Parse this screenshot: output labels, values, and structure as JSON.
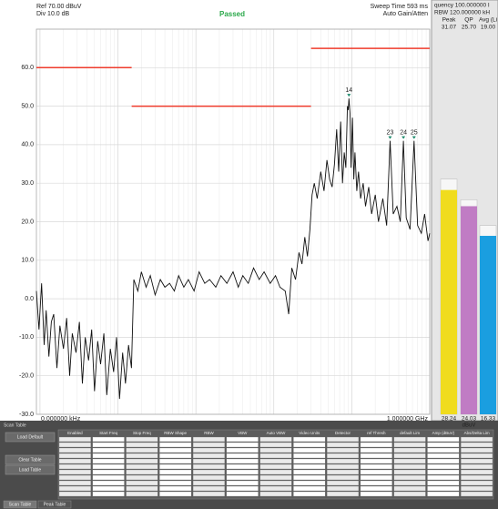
{
  "header": {
    "ref": "Ref 70.00 dBuV",
    "div": "Div 10.0 dB",
    "status": "Passed",
    "sweep": "Sweep Time 593 ms",
    "gain": "Auto Gain/Atten"
  },
  "chart_data": {
    "type": "line",
    "x_start_label": "0.000000 kHz",
    "x_end_label": "1.000000 GHz",
    "log_x": true,
    "grid": true,
    "xlim": [
      0.009,
      1000
    ],
    "ylim": [
      -30,
      70
    ],
    "yticks": [
      {
        "value": -30,
        "label": "-30.0"
      },
      {
        "value": -20,
        "label": "-20.0"
      },
      {
        "value": -10,
        "label": "-10.0"
      },
      {
        "value": 0,
        "label": "0.0"
      },
      {
        "value": 10,
        "label": "10.0"
      },
      {
        "value": 20,
        "label": "20.0"
      },
      {
        "value": 30,
        "label": "30.0"
      },
      {
        "value": 40,
        "label": "40.0"
      },
      {
        "value": 50,
        "label": "50.0"
      },
      {
        "value": 60,
        "label": "60.0"
      },
      70
    ],
    "trace": {
      "color": "#111111",
      "x": [
        0.009,
        0.0097,
        0.0105,
        0.0113,
        0.012,
        0.013,
        0.014,
        0.015,
        0.0165,
        0.018,
        0.02,
        0.022,
        0.024,
        0.026,
        0.029,
        0.032,
        0.035,
        0.038,
        0.042,
        0.046,
        0.05,
        0.055,
        0.06,
        0.066,
        0.072,
        0.08,
        0.088,
        0.096,
        0.105,
        0.115,
        0.125,
        0.137,
        0.149,
        0.16,
        0.18,
        0.2,
        0.23,
        0.26,
        0.3,
        0.35,
        0.4,
        0.46,
        0.53,
        0.6,
        0.7,
        0.8,
        0.95,
        1.1,
        1.3,
        1.5,
        1.8,
        2.1,
        2.5,
        3,
        3.5,
        4,
        4.7,
        5.5,
        6.5,
        7.5,
        9,
        10.5,
        12,
        14,
        15.5,
        17,
        19,
        21,
        23,
        25,
        27,
        29,
        31,
        33,
        36,
        40,
        44,
        48,
        52,
        56,
        60,
        64,
        68,
        72,
        76,
        80,
        84,
        88,
        90,
        92,
        95,
        98,
        102,
        106,
        110,
        116,
        122,
        130,
        140,
        150,
        165,
        180,
        200,
        220,
        250,
        280,
        310,
        340,
        380,
        420,
        460,
        500,
        560,
        630,
        700,
        780,
        860,
        950,
        1000
      ],
      "values": [
        2,
        -8,
        4,
        -12,
        -3,
        -15,
        -6,
        -4,
        -18,
        -7,
        -13,
        -5,
        -20,
        -9,
        -14,
        -6,
        -22,
        -10,
        -16,
        -8,
        -24,
        -11,
        -17,
        -9,
        -25,
        -13,
        -19,
        -10,
        -26,
        -14,
        -22,
        -12,
        -18,
        5,
        2,
        7,
        3,
        6,
        1,
        5,
        3,
        4,
        2,
        6,
        3,
        5,
        2,
        7,
        4,
        5,
        3,
        6,
        4,
        7,
        3,
        6,
        4,
        8,
        5,
        7,
        4,
        6,
        3,
        2,
        -4,
        8,
        5,
        12,
        9,
        16,
        11,
        18,
        27,
        30,
        26,
        33,
        28,
        36,
        31,
        29,
        35,
        44,
        33,
        46,
        30,
        38,
        34,
        50,
        49,
        52,
        48,
        34,
        47,
        31,
        38,
        28,
        33,
        26,
        30,
        24,
        29,
        22,
        27,
        20,
        26,
        19,
        41,
        22,
        24,
        20,
        41,
        21,
        18,
        41,
        19,
        17,
        22,
        15,
        17
      ]
    },
    "limits": {
      "color": "#ef3b2c",
      "lines": [
        {
          "x": [
            0.009,
            0.15
          ],
          "values": [
            60,
            60
          ]
        },
        {
          "x": [
            0.15,
            30
          ],
          "values": [
            50,
            50
          ]
        },
        {
          "x": [
            30,
            1000
          ],
          "values": [
            65,
            65
          ]
        }
      ]
    },
    "markers": [
      {
        "label": "14",
        "x": 92,
        "y": 52
      },
      {
        "label": "23",
        "x": 310,
        "y": 41
      },
      {
        "label": "24",
        "x": 460,
        "y": 41
      },
      {
        "label": "25",
        "x": 630,
        "y": 41
      }
    ]
  },
  "meter": {
    "lines": [
      "quency 100.000000 I",
      "RBW 120.000000 kH"
    ],
    "unit": "dBuV",
    "series": [
      {
        "name": "Peak",
        "color": "#f0dc1e",
        "hold": 31.07,
        "value": 28.24
      },
      {
        "name": "QP",
        "color": "#c07cc4",
        "hold": {
          "value": 25.7,
          "label": "25.70"
        },
        "value": 24.03
      },
      {
        "name": "Avg (Li",
        "color": "#1a9ee0",
        "hold": {
          "value": 19,
          "label": "19.00"
        },
        "value": 16.33
      }
    ]
  },
  "table": {
    "title": "Scan Table",
    "buttons": [
      "Load Default",
      "Clear Table",
      "Load Table"
    ],
    "headers": [
      "Enabled",
      "Start Freq",
      "Stop Freq",
      "RBW Shape",
      "RBW",
      "VBW",
      "Auto VBW",
      "Video Units",
      "Detector",
      "ref Thresh",
      "default Lim",
      "Amp (dBuV)",
      "Abs/Delta Lim"
    ],
    "tabs": [
      "Scan Table",
      "Peak Table"
    ]
  }
}
